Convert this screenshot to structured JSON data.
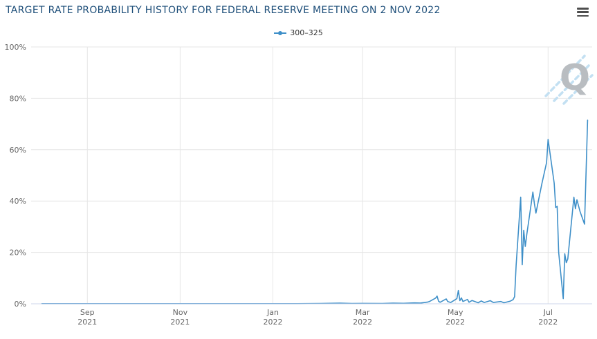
{
  "header": {
    "title": "TARGET RATE PROBABILITY HISTORY FOR FEDERAL RESERVE MEETING ON 2 NOV 2022"
  },
  "legend": {
    "label": "300–325"
  },
  "watermark": {
    "letter": "Q"
  },
  "colors": {
    "title": "#1d4e79",
    "series": "#3e8fc8",
    "grid": "#e6e6e6",
    "axis_line": "#ccd6eb",
    "tick_label": "#666666",
    "legend_text": "#333333",
    "watermark_letter": "#b9bdc1",
    "watermark_dash": "#c3e0f2"
  },
  "chart_data": {
    "type": "line",
    "title": "TARGET RATE PROBABILITY HISTORY FOR FEDERAL RESERVE MEETING ON 2 NOV 2022",
    "series_name": "300–325",
    "legend_position": "top-center",
    "grid": true,
    "ylim": [
      0,
      100
    ],
    "y_ticks": [
      0,
      20,
      40,
      60,
      80,
      100
    ],
    "y_tick_suffix": "%",
    "x_range": [
      "2021-07-26",
      "2022-07-30"
    ],
    "x_ticks": [
      {
        "date": "2021-09-01",
        "line1": "Sep",
        "line2": "2021"
      },
      {
        "date": "2021-11-01",
        "line1": "Nov",
        "line2": "2021"
      },
      {
        "date": "2022-01-01",
        "line1": "Jan",
        "line2": "2022"
      },
      {
        "date": "2022-03-01",
        "line1": "Mar",
        "line2": "2022"
      },
      {
        "date": "2022-05-01",
        "line1": "May",
        "line2": "2022"
      },
      {
        "date": "2022-07-01",
        "line1": "Jul",
        "line2": "2022"
      }
    ],
    "points": [
      [
        "2021-08-02",
        0.05
      ],
      [
        "2021-08-16",
        0.05
      ],
      [
        "2021-09-01",
        0.05
      ],
      [
        "2021-09-15",
        0.05
      ],
      [
        "2021-10-01",
        0.05
      ],
      [
        "2021-10-15",
        0.05
      ],
      [
        "2021-11-01",
        0.05
      ],
      [
        "2021-11-15",
        0.05
      ],
      [
        "2021-12-01",
        0.05
      ],
      [
        "2021-12-15",
        0.05
      ],
      [
        "2022-01-03",
        0.05
      ],
      [
        "2022-01-17",
        0.05
      ],
      [
        "2022-02-01",
        0.1
      ],
      [
        "2022-02-14",
        0.25
      ],
      [
        "2022-02-22",
        0.1
      ],
      [
        "2022-03-01",
        0.15
      ],
      [
        "2022-03-14",
        0.1
      ],
      [
        "2022-03-21",
        0.25
      ],
      [
        "2022-03-28",
        0.2
      ],
      [
        "2022-04-04",
        0.35
      ],
      [
        "2022-04-08",
        0.3
      ],
      [
        "2022-04-11",
        0.5
      ],
      [
        "2022-04-13",
        0.7
      ],
      [
        "2022-04-14",
        0.9
      ],
      [
        "2022-04-18",
        2.2
      ],
      [
        "2022-04-19",
        3.0
      ],
      [
        "2022-04-20",
        1.0
      ],
      [
        "2022-04-21",
        0.6
      ],
      [
        "2022-04-25",
        1.9
      ],
      [
        "2022-04-26",
        0.9
      ],
      [
        "2022-04-28",
        0.5
      ],
      [
        "2022-05-02",
        2.0
      ],
      [
        "2022-05-03",
        5.2
      ],
      [
        "2022-05-04",
        1.2
      ],
      [
        "2022-05-05",
        2.3
      ],
      [
        "2022-05-06",
        0.9
      ],
      [
        "2022-05-09",
        1.7
      ],
      [
        "2022-05-10",
        0.6
      ],
      [
        "2022-05-12",
        1.3
      ],
      [
        "2022-05-16",
        0.4
      ],
      [
        "2022-05-18",
        1.1
      ],
      [
        "2022-05-20",
        0.5
      ],
      [
        "2022-05-24",
        1.2
      ],
      [
        "2022-05-26",
        0.5
      ],
      [
        "2022-05-31",
        0.9
      ],
      [
        "2022-06-02",
        0.4
      ],
      [
        "2022-06-06",
        1.0
      ],
      [
        "2022-06-08",
        1.6
      ],
      [
        "2022-06-09",
        2.8
      ],
      [
        "2022-06-10",
        15.0
      ],
      [
        "2022-06-13",
        41.5
      ],
      [
        "2022-06-14",
        15.2
      ],
      [
        "2022-06-15",
        28.6
      ],
      [
        "2022-06-16",
        22.3
      ],
      [
        "2022-06-17",
        27.0
      ],
      [
        "2022-06-21",
        43.5
      ],
      [
        "2022-06-22",
        39.0
      ],
      [
        "2022-06-23",
        35.3
      ],
      [
        "2022-06-27",
        47.0
      ],
      [
        "2022-06-30",
        55.0
      ],
      [
        "2022-07-01",
        64.0
      ],
      [
        "2022-07-05",
        47.0
      ],
      [
        "2022-07-06",
        37.5
      ],
      [
        "2022-07-07",
        38.0
      ],
      [
        "2022-07-08",
        20.0
      ],
      [
        "2022-07-11",
        2.0
      ],
      [
        "2022-07-12",
        19.5
      ],
      [
        "2022-07-13",
        16.0
      ],
      [
        "2022-07-14",
        17.5
      ],
      [
        "2022-07-18",
        41.5
      ],
      [
        "2022-07-19",
        37.0
      ],
      [
        "2022-07-20",
        40.5
      ],
      [
        "2022-07-22",
        36.0
      ],
      [
        "2022-07-25",
        31.0
      ],
      [
        "2022-07-27",
        71.5
      ]
    ]
  }
}
